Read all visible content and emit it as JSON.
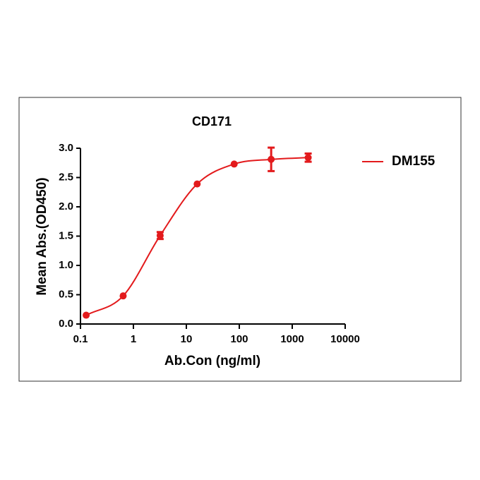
{
  "chart_data": {
    "type": "line",
    "title": "CD171",
    "xlabel": "Ab.Con (ng/ml)",
    "ylabel": "Mean Abs.(OD450)",
    "x": [
      0.128,
      0.64,
      3.2,
      16,
      80,
      400,
      2000
    ],
    "series": [
      {
        "name": "DM155",
        "color": "#e31a1c",
        "values": [
          0.15,
          0.48,
          1.51,
          2.39,
          2.73,
          2.81,
          2.84
        ],
        "errors": [
          null,
          null,
          0.06,
          null,
          null,
          0.2,
          0.07
        ]
      }
    ],
    "xlog": true,
    "xlim": [
      0.1,
      10000
    ],
    "xticks": [
      0.1,
      1,
      10,
      100,
      1000,
      10000
    ],
    "ylim": [
      0,
      3
    ],
    "yticks": [
      {
        "value": 0,
        "label": "0.0"
      },
      0.5,
      {
        "value": 1,
        "label": "1.0"
      },
      1.5,
      {
        "value": 2,
        "label": "2.0"
      },
      2.5,
      {
        "value": 3,
        "label": "3.0"
      }
    ],
    "legend": "right"
  }
}
